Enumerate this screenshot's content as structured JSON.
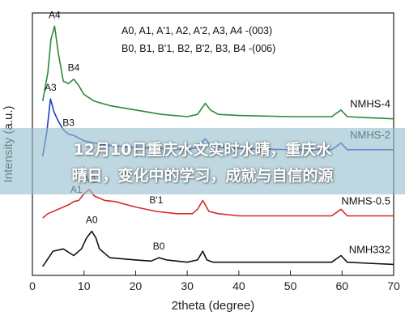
{
  "chart_data": {
    "type": "line",
    "xlabel": "2theta (degree)",
    "ylabel": "Intensity (a.u.)",
    "xlim": [
      0,
      70
    ],
    "xticks": [
      0,
      10,
      20,
      30,
      40,
      50,
      60,
      70
    ],
    "legend_lines": [
      "A0, A1, A'1, A2, A'2, A3, A4 -(003)",
      "B0, B1, B'1, B2, B'2, B3, B4 -(006)"
    ],
    "series": [
      {
        "name": "NMHS-4",
        "color": "#2a8a3a",
        "points": [
          [
            2,
            0.62
          ],
          [
            3,
            0.75
          ],
          [
            3.6,
            0.9
          ],
          [
            4.3,
            0.96
          ],
          [
            5,
            0.84
          ],
          [
            6,
            0.71
          ],
          [
            7,
            0.7
          ],
          [
            8,
            0.72
          ],
          [
            9,
            0.69
          ],
          [
            10,
            0.65
          ],
          [
            12,
            0.62
          ],
          [
            15,
            0.6
          ],
          [
            20,
            0.58
          ],
          [
            25,
            0.56
          ],
          [
            30,
            0.55
          ],
          [
            32,
            0.56
          ],
          [
            33.5,
            0.61
          ],
          [
            34.5,
            0.58
          ],
          [
            36,
            0.56
          ],
          [
            40,
            0.555
          ],
          [
            50,
            0.55
          ],
          [
            58,
            0.55
          ],
          [
            59.8,
            0.58
          ],
          [
            61,
            0.55
          ],
          [
            65,
            0.545
          ],
          [
            70,
            0.54
          ]
        ],
        "labels": [
          {
            "text": "A4",
            "x": 4.3
          },
          {
            "text": "B4",
            "x": 8
          }
        ]
      },
      {
        "name": "NMHS-2",
        "color": "#1f3fbf",
        "points": [
          [
            2,
            0.37
          ],
          [
            2.8,
            0.48
          ],
          [
            3.5,
            0.63
          ],
          [
            4.2,
            0.57
          ],
          [
            5,
            0.53
          ],
          [
            6,
            0.49
          ],
          [
            7,
            0.47
          ],
          [
            8,
            0.465
          ],
          [
            10,
            0.44
          ],
          [
            12,
            0.43
          ],
          [
            15,
            0.42
          ],
          [
            20,
            0.41
          ],
          [
            25,
            0.405
          ],
          [
            30,
            0.4
          ],
          [
            32,
            0.41
          ],
          [
            33.5,
            0.45
          ],
          [
            34.5,
            0.42
          ],
          [
            36,
            0.41
          ],
          [
            40,
            0.405
          ],
          [
            50,
            0.4
          ],
          [
            58,
            0.4
          ],
          [
            59.8,
            0.43
          ],
          [
            61,
            0.4
          ],
          [
            65,
            0.4
          ],
          [
            70,
            0.4
          ]
        ],
        "labels": [
          {
            "text": "A3",
            "x": 3.5
          },
          {
            "text": "B3",
            "x": 7
          }
        ]
      },
      {
        "name": "NMHS-0.5",
        "color": "#d42a2a",
        "points": [
          [
            2,
            0.09
          ],
          [
            3,
            0.11
          ],
          [
            5,
            0.13
          ],
          [
            7,
            0.15
          ],
          [
            8,
            0.165
          ],
          [
            9,
            0.17
          ],
          [
            10,
            0.2
          ],
          [
            11,
            0.22
          ],
          [
            12,
            0.19
          ],
          [
            14,
            0.17
          ],
          [
            16,
            0.165
          ],
          [
            20,
            0.14
          ],
          [
            24,
            0.12
          ],
          [
            28,
            0.11
          ],
          [
            31,
            0.11
          ],
          [
            32,
            0.13
          ],
          [
            33,
            0.17
          ],
          [
            34.2,
            0.12
          ],
          [
            36,
            0.11
          ],
          [
            40,
            0.1
          ],
          [
            50,
            0.1
          ],
          [
            58,
            0.1
          ],
          [
            59.8,
            0.13
          ],
          [
            61,
            0.1
          ],
          [
            65,
            0.1
          ],
          [
            70,
            0.1
          ]
        ],
        "labels": [
          {
            "text": "A1",
            "x": 8.5
          },
          {
            "text": "A'1",
            "x": 11.2
          },
          {
            "text": "B'1",
            "x": 24
          }
        ]
      },
      {
        "name": "NMH332",
        "color": "#111111",
        "points": [
          [
            2,
            -0.13
          ],
          [
            4,
            -0.06
          ],
          [
            6,
            -0.05
          ],
          [
            8,
            -0.08
          ],
          [
            9.5,
            -0.05
          ],
          [
            10.5,
            0.0
          ],
          [
            11.5,
            0.03
          ],
          [
            12.3,
            0.0
          ],
          [
            13,
            -0.05
          ],
          [
            15,
            -0.09
          ],
          [
            20,
            -0.1
          ],
          [
            23,
            -0.105
          ],
          [
            24.5,
            -0.09
          ],
          [
            26,
            -0.1
          ],
          [
            30,
            -0.11
          ],
          [
            32,
            -0.1
          ],
          [
            33,
            -0.06
          ],
          [
            33.8,
            -0.1
          ],
          [
            35,
            -0.11
          ],
          [
            40,
            -0.11
          ],
          [
            50,
            -0.11
          ],
          [
            58,
            -0.11
          ],
          [
            59.8,
            -0.08
          ],
          [
            61,
            -0.11
          ],
          [
            65,
            -0.115
          ],
          [
            70,
            -0.12
          ]
        ],
        "labels": [
          {
            "text": "A0",
            "x": 11.5
          },
          {
            "text": "B0",
            "x": 24.5
          }
        ]
      }
    ]
  },
  "overlay": {
    "line1": "12月10日重庆水文实时水晴，重庆水",
    "line2": "晴日，变化中的学习，成就与自信的源"
  }
}
